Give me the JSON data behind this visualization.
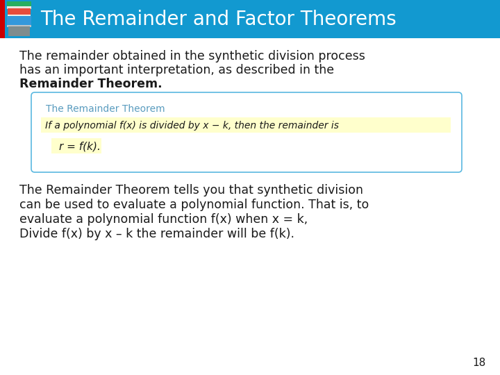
{
  "title": "The Remainder and Factor Theorems",
  "title_bg_color": "#1299d0",
  "title_text_color": "#ffffff",
  "body_bg_color": "#ffffff",
  "para1_line1": "The remainder obtained in the synthetic division process",
  "para1_line2": "has an important interpretation, as described in the",
  "para1_line3_bold": "Remainder Theorem.",
  "box_border_color": "#5ab8e0",
  "box_bg_color": "#ffffff",
  "box_title": "The Remainder Theorem",
  "box_title_color": "#5a9cbf",
  "box_line1": "If a polynomial f(x) is divided by x − k, then the remainder is",
  "box_highlight_color": "#ffffcc",
  "box_formula": "r = f(k).",
  "para2_line1": "The Remainder Theorem tells you that synthetic division",
  "para2_line2": "can be used to evaluate a polynomial function. That is, to",
  "para2_line3": "evaluate a polynomial function f(x) when x = k,",
  "para2_line4": "Divide f(x) by x – k the remainder will be f(k).",
  "page_number": "18",
  "body_text_color": "#1a1a1a",
  "red_bar_color": "#cc0000",
  "font_size_title": 20,
  "font_size_body": 12.5,
  "font_size_box_title": 10,
  "font_size_box_body": 10,
  "font_size_page": 11,
  "book_colors": [
    "#27ae60",
    "#e74c3c",
    "#f39c12",
    "#3498db",
    "#9b59b6",
    "#ecf0f1"
  ]
}
